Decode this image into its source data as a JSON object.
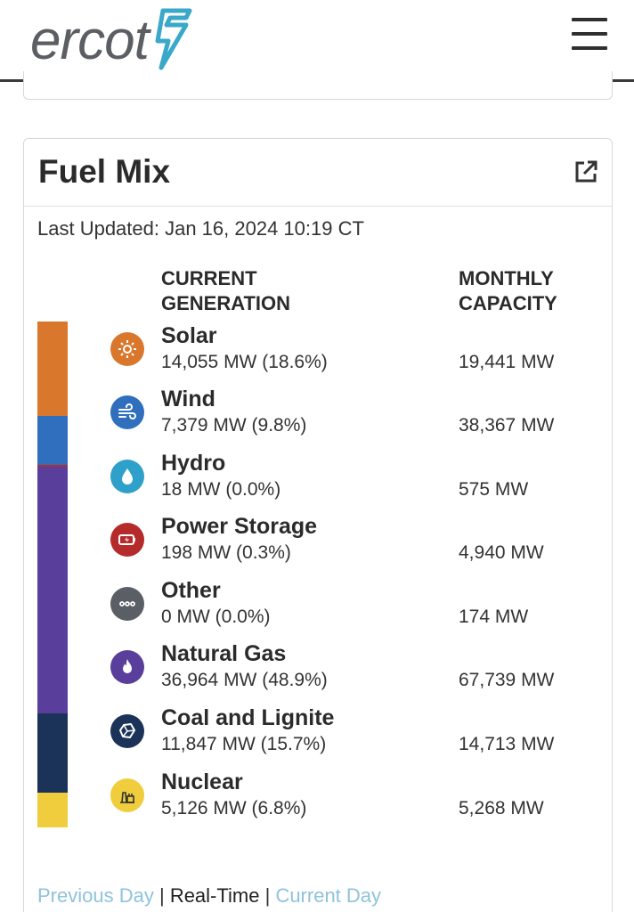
{
  "header": {
    "logo_text": "ercot",
    "menu_icon": "hamburger-menu-icon"
  },
  "card": {
    "title": "Fuel Mix",
    "external_icon": "external-link-icon",
    "last_updated": "Last Updated: Jan 16, 2024 10:19 CT",
    "col_generation": "CURRENT\nGENERATION",
    "col_capacity": "MONTHLY\nCAPACITY"
  },
  "fuels": [
    {
      "name": "Solar",
      "generation": "14,055 MW (18.6%)",
      "capacity": "19,441 MW",
      "share": 18.6,
      "color": "#d9782d",
      "icon": "sun-icon"
    },
    {
      "name": "Wind",
      "generation": "7,379 MW (9.8%)",
      "capacity": "38,367 MW",
      "share": 9.8,
      "color": "#2f6fbd",
      "icon": "wind-icon"
    },
    {
      "name": "Hydro",
      "generation": "18 MW (0.0%)",
      "capacity": "575 MW",
      "share": 0.0,
      "color": "#2fa0c9",
      "icon": "water-drop-icon"
    },
    {
      "name": "Power Storage",
      "generation": "198 MW (0.3%)",
      "capacity": "4,940 MW",
      "share": 0.3,
      "color": "#b52b2b",
      "icon": "battery-icon"
    },
    {
      "name": "Other",
      "generation": "0 MW (0.0%)",
      "capacity": "174 MW",
      "share": 0.0,
      "color": "#5a5f66",
      "icon": "ellipsis-icon"
    },
    {
      "name": "Natural Gas",
      "generation": "36,964 MW (48.9%)",
      "capacity": "67,739 MW",
      "share": 48.9,
      "color": "#5a3e9c",
      "icon": "flame-icon"
    },
    {
      "name": "Coal and Lignite",
      "generation": "11,847 MW (15.7%)",
      "capacity": "14,713 MW",
      "share": 15.7,
      "color": "#1b3358",
      "icon": "coal-icon"
    },
    {
      "name": "Nuclear",
      "generation": "5,126 MW (6.8%)",
      "capacity": "5,268 MW",
      "share": 6.8,
      "color": "#f0cd3c",
      "icon": "nuclear-plant-icon"
    }
  ],
  "footer": {
    "previous_day": "Previous Day",
    "real_time": "Real-Time",
    "current_day": "Current Day",
    "separator": "|"
  }
}
